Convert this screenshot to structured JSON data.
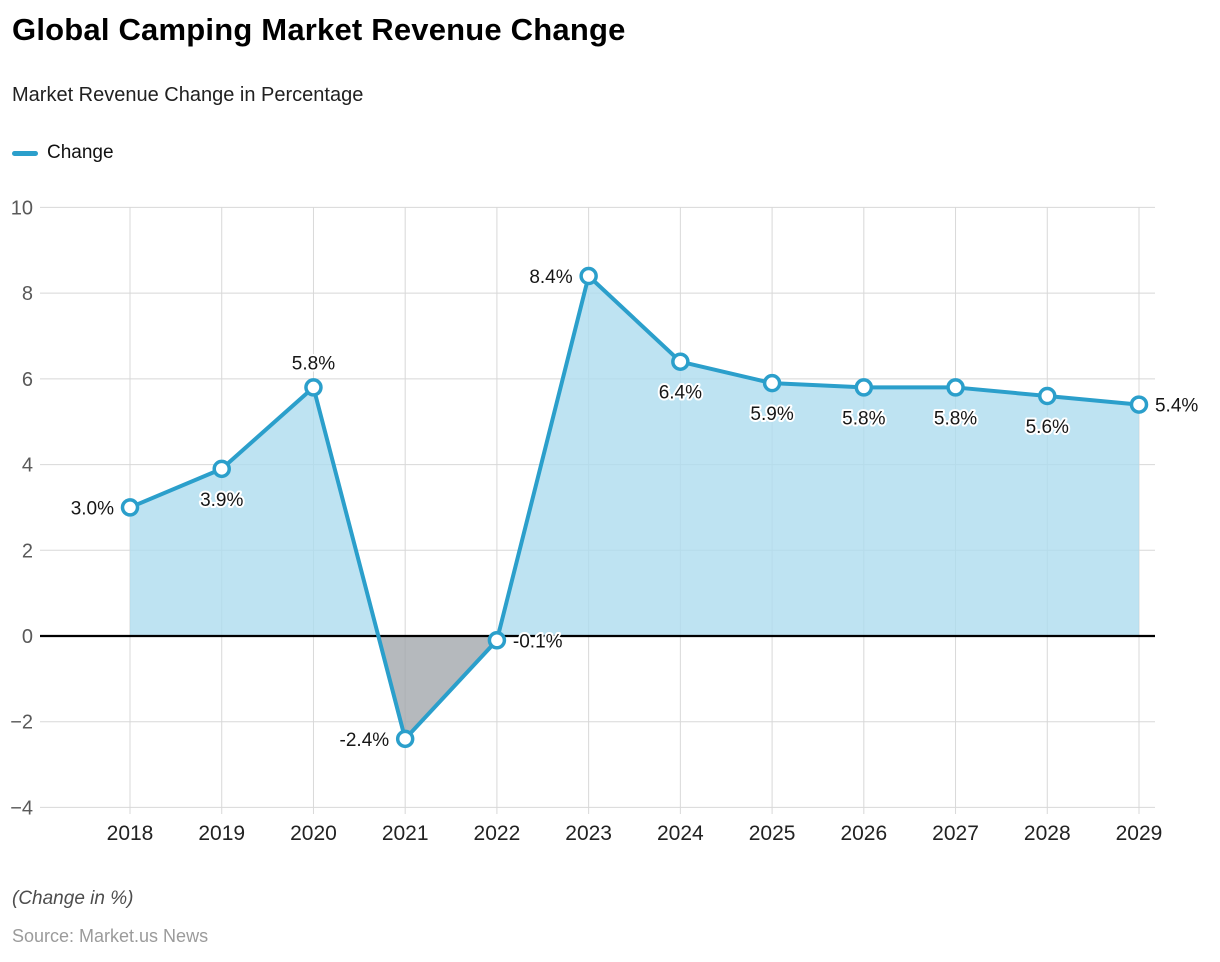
{
  "header": {
    "title": "Global Camping Market Revenue Change",
    "subtitle": "Market Revenue Change in Percentage"
  },
  "legend": {
    "items": [
      {
        "label": "Change",
        "color": "#2b9fcb"
      }
    ]
  },
  "chart_data": {
    "type": "area",
    "title": "Global Camping Market Revenue Change",
    "subtitle": "Market Revenue Change in Percentage",
    "categories": [
      "2018",
      "2019",
      "2020",
      "2021",
      "2022",
      "2023",
      "2024",
      "2025",
      "2026",
      "2027",
      "2028",
      "2029"
    ],
    "series": [
      {
        "name": "Change",
        "values": [
          3.0,
          3.9,
          5.8,
          -2.4,
          -0.1,
          8.4,
          6.4,
          5.9,
          5.8,
          5.8,
          5.6,
          5.4
        ]
      }
    ],
    "point_labels": [
      "3.0%",
      "3.9%",
      "5.8%",
      "-2.4%",
      "-0.1%",
      "8.4%",
      "6.4%",
      "5.9%",
      "5.8%",
      "5.8%",
      "5.6%",
      "5.4%"
    ],
    "label_positions": [
      "left",
      "below",
      "above",
      "left",
      "right",
      "left",
      "below",
      "below",
      "below",
      "below",
      "below",
      "right"
    ],
    "ylim": [
      -4,
      10
    ],
    "yticks": [
      -4,
      -2,
      0,
      2,
      4,
      6,
      8,
      10
    ],
    "grid": true,
    "zero_line": true,
    "legend_position": "top-left",
    "xlabel": "",
    "ylabel": ""
  },
  "style": {
    "line_color": "#2b9fcb",
    "marker_fill": "#ffffff",
    "fill_positive": "#aedcef",
    "fill_negative": "#a2a8ac",
    "fill_opacity": "0.8",
    "grid_color": "#d8d8d8",
    "zero_line_color": "#000000",
    "ytick_color": "#595959",
    "xtick_color": "#222222",
    "point_label_color": "#161616"
  },
  "footer": {
    "note": "(Change in %)",
    "source": "Source: Market.us News"
  }
}
